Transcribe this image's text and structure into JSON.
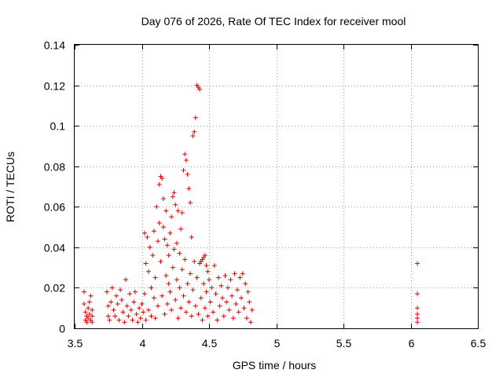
{
  "chart_data": {
    "type": "scatter",
    "title": "Day 076 of 2026, Rate Of TEC Index for receiver mool",
    "xlabel": "GPS time / hours",
    "ylabel": "ROTI / TECUs",
    "xlim": [
      3.5,
      6.5
    ],
    "ylim": [
      0,
      0.14
    ],
    "x_ticks": [
      "3.5",
      "4",
      "4.5",
      "5",
      "5.5",
      "6",
      "6.5"
    ],
    "y_ticks": [
      "0",
      "0.02",
      "0.04",
      "0.06",
      "0.08",
      "0.1",
      "0.12",
      "0.14"
    ],
    "grid": true,
    "marker": "+",
    "color": "#e00000",
    "series": [
      {
        "name": "ROTI",
        "points": [
          [
            3.57,
            0.018
          ],
          [
            3.57,
            0.012
          ],
          [
            3.58,
            0.008
          ],
          [
            3.58,
            0.004
          ],
          [
            3.59,
            0.006
          ],
          [
            3.59,
            0.003
          ],
          [
            3.6,
            0.01
          ],
          [
            3.6,
            0.005
          ],
          [
            3.61,
            0.013
          ],
          [
            3.61,
            0.007
          ],
          [
            3.62,
            0.004
          ],
          [
            3.62,
            0.016
          ],
          [
            3.63,
            0.009
          ],
          [
            3.63,
            0.006
          ],
          [
            3.63,
            0.003
          ],
          [
            3.74,
            0.018
          ],
          [
            3.75,
            0.011
          ],
          [
            3.75,
            0.006
          ],
          [
            3.76,
            0.004
          ],
          [
            3.77,
            0.013
          ],
          [
            3.78,
            0.02
          ],
          [
            3.79,
            0.009
          ],
          [
            3.8,
            0.006
          ],
          [
            3.81,
            0.016
          ],
          [
            3.82,
            0.012
          ],
          [
            3.83,
            0.004
          ],
          [
            3.84,
            0.019
          ],
          [
            3.85,
            0.014
          ],
          [
            3.86,
            0.008
          ],
          [
            3.87,
            0.003
          ],
          [
            3.88,
            0.024
          ],
          [
            3.89,
            0.011
          ],
          [
            3.9,
            0.006
          ],
          [
            3.91,
            0.017
          ],
          [
            3.92,
            0.009
          ],
          [
            3.93,
            0.004
          ],
          [
            3.94,
            0.013
          ],
          [
            3.95,
            0.018
          ],
          [
            3.96,
            0.007
          ],
          [
            3.97,
            0.003
          ],
          [
            3.98,
            0.01
          ],
          [
            3.99,
            0.005
          ],
          [
            4.0,
            0.012
          ],
          [
            4.01,
            0.008
          ],
          [
            4.02,
            0.017
          ],
          [
            4.02,
            0.047
          ],
          [
            4.03,
            0.032
          ],
          [
            4.03,
            0.004
          ],
          [
            4.04,
            0.045
          ],
          [
            4.05,
            0.028
          ],
          [
            4.05,
            0.009
          ],
          [
            4.06,
            0.04
          ],
          [
            4.07,
            0.02
          ],
          [
            4.07,
            0.006
          ],
          [
            4.08,
            0.036
          ],
          [
            4.09,
            0.015
          ],
          [
            4.09,
            0.048
          ],
          [
            4.1,
            0.025
          ],
          [
            4.1,
            0.005
          ],
          [
            4.11,
            0.06
          ],
          [
            4.12,
            0.043
          ],
          [
            4.12,
            0.011
          ],
          [
            4.13,
            0.071
          ],
          [
            4.13,
            0.052
          ],
          [
            4.14,
            0.075
          ],
          [
            4.14,
            0.033
          ],
          [
            4.15,
            0.074
          ],
          [
            4.15,
            0.016
          ],
          [
            4.16,
            0.064
          ],
          [
            4.16,
            0.05
          ],
          [
            4.17,
            0.044
          ],
          [
            4.17,
            0.007
          ],
          [
            4.18,
            0.058
          ],
          [
            4.18,
            0.026
          ],
          [
            4.19,
            0.041
          ],
          [
            4.19,
            0.012
          ],
          [
            4.2,
            0.036
          ],
          [
            4.2,
            0.022
          ],
          [
            4.21,
            0.047
          ],
          [
            4.21,
            0.018
          ],
          [
            4.22,
            0.055
          ],
          [
            4.22,
            0.009
          ],
          [
            4.23,
            0.065
          ],
          [
            4.23,
            0.03
          ],
          [
            4.24,
            0.067
          ],
          [
            4.24,
            0.039
          ],
          [
            4.25,
            0.061
          ],
          [
            4.25,
            0.014
          ],
          [
            4.26,
            0.042
          ],
          [
            4.26,
            0.024
          ],
          [
            4.27,
            0.058
          ],
          [
            4.27,
            0.005
          ],
          [
            4.28,
            0.037
          ],
          [
            4.28,
            0.02
          ],
          [
            4.29,
            0.049
          ],
          [
            4.29,
            0.01
          ],
          [
            4.3,
            0.057
          ],
          [
            4.3,
            0.029
          ],
          [
            4.31,
            0.078
          ],
          [
            4.31,
            0.016
          ],
          [
            4.32,
            0.086
          ],
          [
            4.32,
            0.034
          ],
          [
            4.33,
            0.083
          ],
          [
            4.33,
            0.008
          ],
          [
            4.34,
            0.076
          ],
          [
            4.34,
            0.022
          ],
          [
            4.35,
            0.069
          ],
          [
            4.35,
            0.013
          ],
          [
            4.36,
            0.062
          ],
          [
            4.36,
            0.027
          ],
          [
            4.37,
            0.045
          ],
          [
            4.37,
            0.006
          ],
          [
            4.38,
            0.095
          ],
          [
            4.38,
            0.019
          ],
          [
            4.39,
            0.097
          ],
          [
            4.39,
            0.033
          ],
          [
            4.4,
            0.104
          ],
          [
            4.4,
            0.011
          ],
          [
            4.41,
            0.12
          ],
          [
            4.41,
            0.025
          ],
          [
            4.42,
            0.119
          ],
          [
            4.42,
            0.007
          ],
          [
            4.43,
            0.118
          ],
          [
            4.43,
            0.032
          ],
          [
            4.44,
            0.033
          ],
          [
            4.44,
            0.015
          ],
          [
            4.45,
            0.034
          ],
          [
            4.45,
            0.004
          ],
          [
            4.46,
            0.035
          ],
          [
            4.46,
            0.022
          ],
          [
            4.47,
            0.036
          ],
          [
            4.47,
            0.01
          ],
          [
            4.48,
            0.031
          ],
          [
            4.48,
            0.018
          ],
          [
            4.49,
            0.028
          ],
          [
            4.49,
            0.006
          ],
          [
            4.5,
            0.024
          ],
          [
            4.51,
            0.013
          ],
          [
            4.52,
            0.02
          ],
          [
            4.53,
            0.008
          ],
          [
            4.54,
            0.031
          ],
          [
            4.55,
            0.017
          ],
          [
            4.56,
            0.004
          ],
          [
            4.57,
            0.025
          ],
          [
            4.58,
            0.011
          ],
          [
            4.59,
            0.021
          ],
          [
            4.6,
            0.015
          ],
          [
            4.61,
            0.006
          ],
          [
            4.62,
            0.026
          ],
          [
            4.63,
            0.013
          ],
          [
            4.64,
            0.02
          ],
          [
            4.65,
            0.009
          ],
          [
            4.66,
            0.024
          ],
          [
            4.67,
            0.016
          ],
          [
            4.68,
            0.005
          ],
          [
            4.69,
            0.027
          ],
          [
            4.7,
            0.012
          ],
          [
            4.71,
            0.019
          ],
          [
            4.72,
            0.008
          ],
          [
            4.73,
            0.025
          ],
          [
            4.74,
            0.015
          ],
          [
            4.75,
            0.027
          ],
          [
            4.76,
            0.01
          ],
          [
            4.77,
            0.022
          ],
          [
            4.78,
            0.005
          ],
          [
            4.79,
            0.018
          ],
          [
            4.8,
            0.013
          ],
          [
            4.81,
            0.003
          ],
          [
            4.82,
            0.009
          ],
          [
            6.05,
            0.032
          ],
          [
            6.05,
            0.017
          ],
          [
            6.05,
            0.01
          ],
          [
            6.05,
            0.007
          ],
          [
            6.05,
            0.005
          ],
          [
            6.05,
            0.003
          ]
        ]
      }
    ]
  }
}
